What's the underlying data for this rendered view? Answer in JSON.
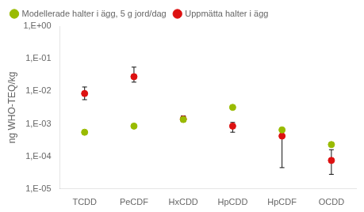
{
  "chart_data": {
    "type": "scatter",
    "categories": [
      "TCDD",
      "PeCDF",
      "HxCDD",
      "HpCDD",
      "HpCDF",
      "OCDD"
    ],
    "series": [
      {
        "name": "Modellerade halter i ägg, 5 g jord/dag",
        "color": "#99BB00",
        "marker": "circle",
        "values": [
          0.00055,
          0.00085,
          0.00135,
          0.0032,
          0.00065,
          0.00023
        ]
      },
      {
        "name": "Uppmätta halter i ägg",
        "color": "#DD1111",
        "marker": "circle",
        "values": [
          0.0085,
          0.028,
          0.0014,
          0.00085,
          0.00042,
          7.5e-05
        ],
        "upper": [
          0.0135,
          0.055,
          0.00175,
          0.0011,
          0.00065,
          0.00016
        ],
        "lower": [
          0.0055,
          0.019,
          0.00115,
          0.00055,
          4.5e-05,
          2.8e-05
        ],
        "error_color": "#111111"
      }
    ],
    "ylabel": "ng WHO-TEQ/kg",
    "log": "y",
    "ylim": [
      1e-05,
      1
    ],
    "yticks": [
      {
        "value": 1e-05,
        "label": "1,E-05"
      },
      {
        "value": 0.0001,
        "label": "1,E-04"
      },
      {
        "value": 0.001,
        "label": "1,E-03"
      },
      {
        "value": 0.01,
        "label": "1,E-02"
      },
      {
        "value": 0.1,
        "label": "1,E-01"
      },
      {
        "value": 1,
        "label": "1,E+00"
      }
    ],
    "grid": false,
    "legend": "upper left"
  }
}
